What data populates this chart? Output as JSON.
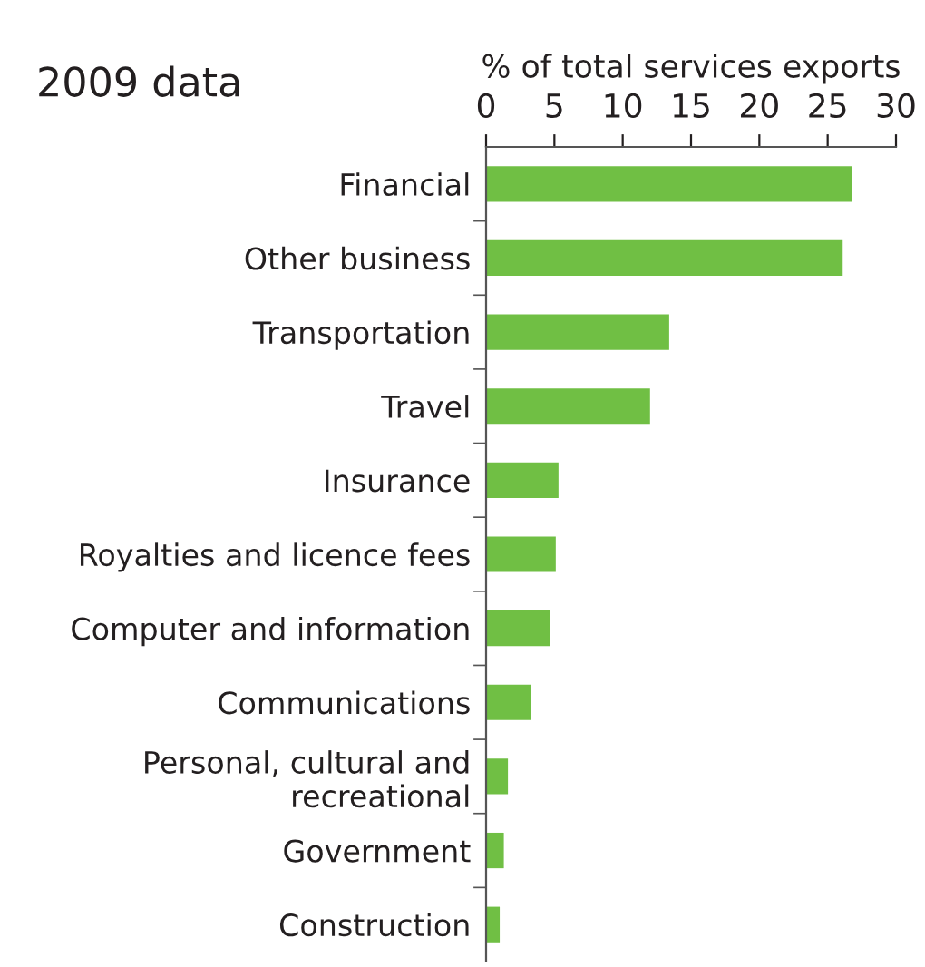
{
  "chart_data": {
    "type": "bar",
    "orientation": "horizontal",
    "title": "2009 data",
    "xlabel": "% of total services exports",
    "categories": [
      "Financial",
      "Other business",
      "Transportation",
      "Travel",
      "Insurance",
      "Royalties and licence fees",
      "Computer and information",
      "Communications",
      "Personal, cultural and\nrecreational",
      "Government",
      "Construction"
    ],
    "values": [
      26.8,
      26.1,
      13.4,
      12.0,
      5.3,
      5.1,
      4.7,
      3.3,
      1.6,
      1.3,
      1.0
    ],
    "color": "#70bf44",
    "xlim": [
      0,
      30
    ],
    "xticks": [
      0,
      5,
      10,
      15,
      20,
      25,
      30
    ],
    "grid": false
  }
}
